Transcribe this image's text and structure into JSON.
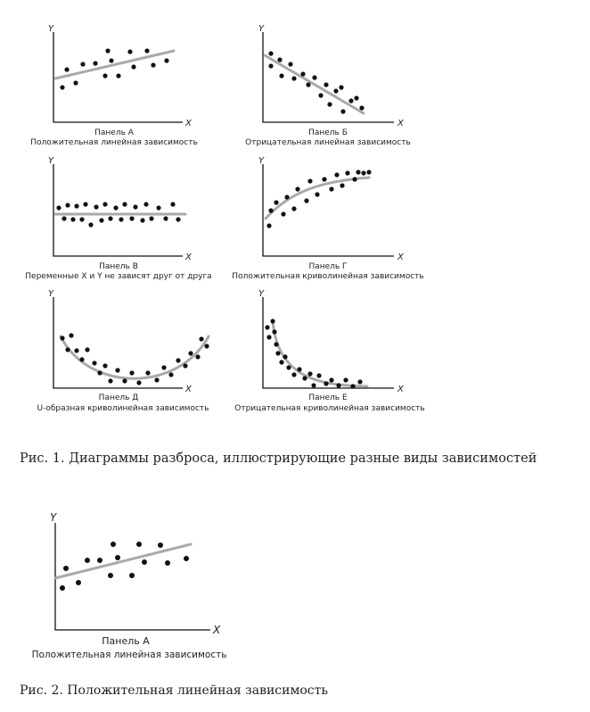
{
  "figure1": {
    "caption": "Рис. 1. Диаграммы разброса, иллюстрирующие разные виды зависимостей",
    "panels": [
      {
        "title": "Панель А",
        "subtitle": "Положительная линейная зависимость",
        "x_label": "X",
        "y_label": "Y",
        "relation": "positive-linear"
      },
      {
        "title": "Панель Б",
        "subtitle": "Отрицательная линейная зависимость",
        "x_label": "X",
        "y_label": "Y",
        "relation": "negative-linear"
      },
      {
        "title": "Панель В",
        "subtitle": "Переменные X и Y не зависят друг от друга",
        "x_label": "X",
        "y_label": "Y",
        "relation": "none"
      },
      {
        "title": "Панель Г",
        "subtitle": "Положительная криволинейная зависимость",
        "x_label": "X",
        "y_label": "Y",
        "relation": "positive-curvilinear"
      },
      {
        "title": "Панель Д",
        "subtitle": "U-образная криволинейная зависимость",
        "x_label": "X",
        "y_label": "Y",
        "relation": "u-shaped"
      },
      {
        "title": "Панель Е",
        "subtitle": "Отрицательная криволинейная зависимость",
        "x_label": "X",
        "y_label": "Y",
        "relation": "negative-curvilinear"
      }
    ]
  },
  "figure2": {
    "caption": "Рис. 2. Положительная линейная зависимость",
    "panel": {
      "title": "Панель А",
      "subtitle": "Положительная линейная зависимость",
      "x_label": "X",
      "y_label": "Y",
      "relation": "positive-linear"
    }
  },
  "colors": {
    "points": "#111111",
    "trend": "#a9a9a9",
    "axes": "#111111"
  }
}
